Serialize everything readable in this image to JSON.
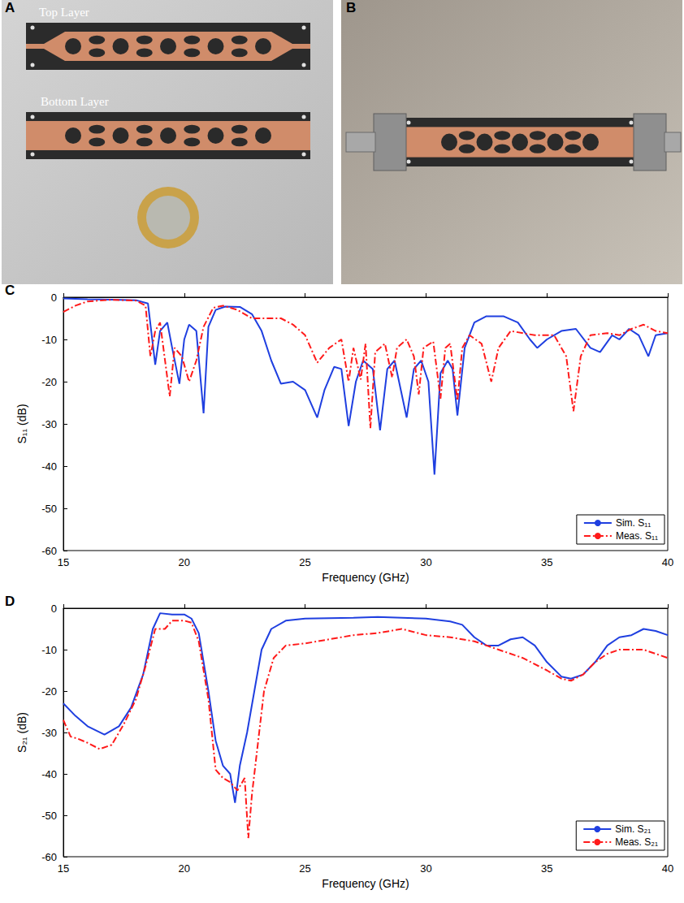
{
  "photos": [
    {
      "panel": "A",
      "labels": [
        "Top Layer",
        "Bottom Layer"
      ]
    },
    {
      "panel": "B"
    }
  ],
  "chart_data": [
    {
      "panel": "C",
      "type": "line",
      "x_label": "Frequency (GHz)",
      "y_label": "S₁₁ (dB)",
      "xlim": [
        15,
        40
      ],
      "xticks": [
        15,
        20,
        25,
        30,
        35,
        40
      ],
      "ylim": [
        -60,
        0
      ],
      "yticks": [
        -60,
        -50,
        -40,
        -30,
        -20,
        -10,
        0
      ],
      "grid": false,
      "legend": "lower right",
      "series": [
        {
          "name": "Sim. S₁₁",
          "color": "#1f3fe0",
          "line_style": "solid",
          "x": [
            15,
            16,
            17,
            18,
            18.5,
            18.8,
            19,
            19.3,
            19.5,
            19.8,
            20,
            20.2,
            20.5,
            20.8,
            21,
            21.3,
            21.7,
            22.3,
            22.8,
            23.2,
            23.6,
            24,
            24.5,
            25,
            25.5,
            25.8,
            26.2,
            26.5,
            26.8,
            27.1,
            27.4,
            27.8,
            28.1,
            28.4,
            28.7,
            29.2,
            29.5,
            29.8,
            30.1,
            30.35,
            30.6,
            30.9,
            31.1,
            31.3,
            31.6,
            32,
            32.5,
            33.2,
            33.8,
            34.3,
            34.6,
            35,
            35.6,
            36.2,
            36.8,
            37.2,
            37.7,
            38,
            38.4,
            38.8,
            39.2,
            39.5,
            40
          ],
          "values": [
            -0.3,
            -0.5,
            -0.6,
            -0.7,
            -1.5,
            -16,
            -8,
            -6,
            -12,
            -20.5,
            -10,
            -6.5,
            -8,
            -27.5,
            -7,
            -3,
            -2.2,
            -2.3,
            -4,
            -8,
            -15,
            -20.5,
            -20,
            -22,
            -28.5,
            -22,
            -16.5,
            -17,
            -30.5,
            -20,
            -15,
            -17,
            -31.5,
            -17,
            -15,
            -28.5,
            -17,
            -15,
            -20,
            -42,
            -18,
            -15,
            -17,
            -28,
            -12,
            -6,
            -4.5,
            -4.5,
            -6,
            -10,
            -12,
            -10,
            -8,
            -7.5,
            -12,
            -13,
            -9,
            -10,
            -7.5,
            -9,
            -14,
            -9,
            -8.5
          ]
        },
        {
          "name": "Meas. S₁₁",
          "color": "#ff1a1a",
          "line_style": "dashdot",
          "x": [
            15,
            15.5,
            16,
            17,
            18,
            18.4,
            18.6,
            18.8,
            19,
            19.4,
            19.6,
            19.9,
            20.2,
            20.5,
            20.8,
            21.2,
            21.6,
            22.2,
            22.8,
            23.5,
            24,
            24.5,
            25,
            25.5,
            26,
            26.5,
            26.8,
            27,
            27.3,
            27.5,
            27.7,
            27.9,
            28.3,
            28.6,
            28.8,
            29.2,
            29.5,
            29.7,
            29.9,
            30.3,
            30.6,
            30.8,
            31,
            31.3,
            31.5,
            31.8,
            32.3,
            32.7,
            33,
            33.5,
            34.5,
            35.3,
            35.8,
            36.1,
            36.4,
            36.8,
            37.5,
            38,
            38.5,
            39,
            39.5,
            40
          ],
          "values": [
            -3.5,
            -2,
            -1,
            -0.6,
            -0.8,
            -2,
            -14,
            -8,
            -6,
            -23.5,
            -12,
            -14,
            -20,
            -15,
            -7,
            -2.5,
            -2,
            -3,
            -5,
            -5,
            -5,
            -6.5,
            -9,
            -15.5,
            -12,
            -10,
            -20,
            -12,
            -19.5,
            -11,
            -31,
            -13,
            -11,
            -19,
            -12,
            -10,
            -14,
            -23,
            -12,
            -10.5,
            -24,
            -12,
            -11,
            -24.5,
            -12,
            -9,
            -11,
            -20,
            -12,
            -8,
            -9,
            -9,
            -14,
            -27,
            -14,
            -9,
            -8.5,
            -9,
            -7.5,
            -6.5,
            -8,
            -8.5
          ]
        }
      ]
    },
    {
      "panel": "D",
      "type": "line",
      "x_label": "Frequency (GHz)",
      "y_label": "S₂₁ (dB)",
      "xlim": [
        15,
        40
      ],
      "xticks": [
        15,
        20,
        25,
        30,
        35,
        40
      ],
      "ylim": [
        -60,
        0
      ],
      "yticks": [
        -60,
        -50,
        -40,
        -30,
        -20,
        -10,
        0
      ],
      "grid": false,
      "legend": "lower right",
      "series": [
        {
          "name": "Sim. S₂₁",
          "color": "#1f3fe0",
          "line_style": "solid",
          "x": [
            15,
            15.5,
            16,
            16.7,
            17.3,
            17.8,
            18.3,
            18.7,
            19,
            19.5,
            20,
            20.3,
            20.6,
            21,
            21.3,
            21.6,
            21.9,
            22.1,
            22.3,
            22.6,
            22.9,
            23.2,
            23.6,
            24.2,
            25,
            27,
            28,
            30,
            31,
            31.5,
            32,
            32.5,
            33,
            33.5,
            34,
            34.5,
            35,
            35.6,
            36,
            36.5,
            37,
            37.5,
            38,
            38.5,
            39,
            39.5,
            40
          ],
          "values": [
            -23,
            -26,
            -28.5,
            -30.5,
            -28.5,
            -24,
            -16,
            -5,
            -1.2,
            -1.5,
            -1.5,
            -2.5,
            -6,
            -20,
            -32,
            -38,
            -40,
            -47,
            -38,
            -30,
            -20,
            -10,
            -5,
            -3,
            -2.5,
            -2.3,
            -2.1,
            -2.5,
            -3.2,
            -4,
            -7,
            -9,
            -9,
            -7.5,
            -7,
            -9,
            -13,
            -16.5,
            -17,
            -16,
            -13,
            -9,
            -7,
            -6.5,
            -5,
            -5.5,
            -6.5
          ]
        },
        {
          "name": "Meas. S₂₁",
          "color": "#ff1a1a",
          "line_style": "dashdot",
          "x": [
            15,
            15.3,
            15.6,
            16,
            16.5,
            17,
            17.5,
            18,
            18.4,
            18.8,
            19.2,
            19.5,
            20,
            20.3,
            20.6,
            21,
            21.3,
            21.6,
            21.9,
            22.2,
            22.5,
            22.65,
            22.8,
            23,
            23.3,
            23.7,
            24.2,
            25,
            26,
            27,
            28,
            29,
            30,
            31,
            32,
            33,
            34,
            35,
            35.6,
            36,
            36.5,
            37,
            37.5,
            38,
            39,
            40
          ],
          "values": [
            -27,
            -31,
            -31.5,
            -32.5,
            -34,
            -33,
            -28,
            -22,
            -14,
            -5,
            -5,
            -3,
            -3,
            -3.5,
            -8,
            -22,
            -39,
            -41,
            -42,
            -44,
            -41,
            -55.5,
            -45,
            -35,
            -20,
            -12,
            -9,
            -8.5,
            -7.5,
            -6.5,
            -6,
            -5,
            -6.5,
            -7,
            -8,
            -10,
            -12,
            -15,
            -17,
            -17.5,
            -16,
            -13,
            -11,
            -10,
            -10,
            -12
          ]
        }
      ]
    }
  ]
}
